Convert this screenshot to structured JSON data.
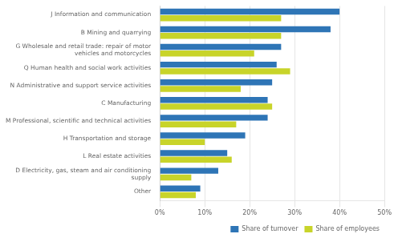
{
  "chart_data": {
    "type": "bar",
    "orientation": "horizontal",
    "categories": [
      "Other",
      "D Electricity, gas, steam and air conditioning\nsupply",
      "L Real estate activities",
      "H Transportation and storage",
      "M Professional, scientific and technical activities",
      "C Manufacturing",
      "N Administrative and support service activities",
      "Q Human health and social work activities",
      "G Wholesale and retail trade: repair of motor\nvehicles and motorcycles",
      "B Mining and quarrying",
      "J Information and communication"
    ],
    "series": [
      {
        "name": "Share of turnover",
        "color": "#2e75b6",
        "values": [
          9,
          13,
          15,
          19,
          24,
          24,
          25,
          26,
          27,
          38,
          40
        ]
      },
      {
        "name": "Share of employees",
        "color": "#c8d42a",
        "values": [
          8,
          7,
          16,
          10,
          17,
          25,
          18,
          29,
          21,
          27,
          27
        ]
      }
    ],
    "xlim": [
      0,
      50
    ],
    "xticks": [
      {
        "value": 0,
        "label": "0%"
      },
      {
        "value": 10,
        "label": "10%"
      },
      {
        "value": 20,
        "label": "20%"
      },
      {
        "value": 30,
        "label": "30%"
      },
      {
        "value": 40,
        "label": "40%"
      },
      {
        "value": 50,
        "label": "50%"
      }
    ],
    "grid": true,
    "legend": "lower right"
  }
}
